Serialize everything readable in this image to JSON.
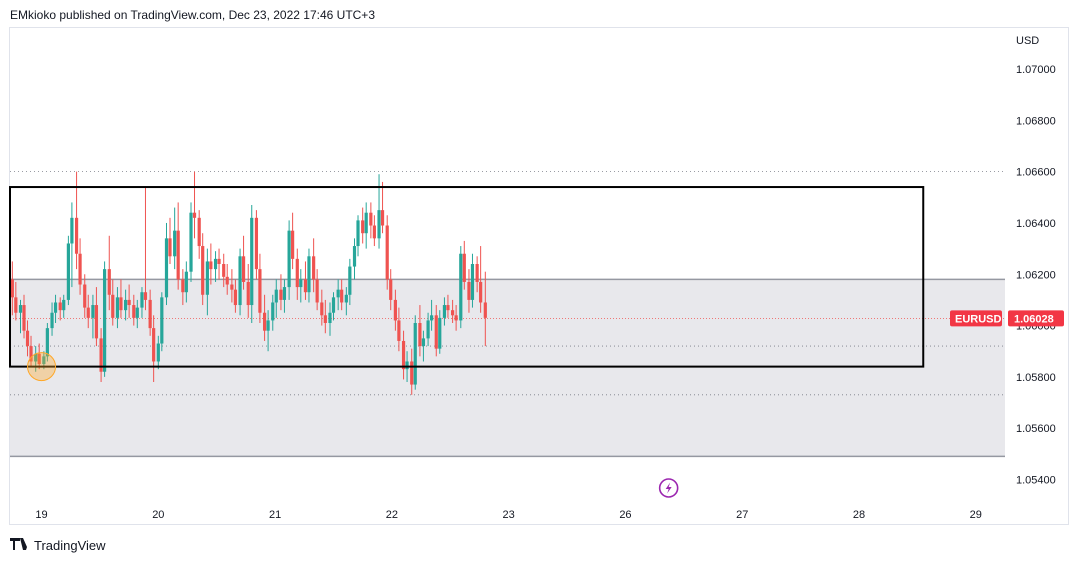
{
  "header": {
    "publisher": "EMkioko published on TradingView.com, Dec 23, 2022 17:46 UTC+3"
  },
  "footer": {
    "brand": "TradingView",
    "logo_icon": "tradingview-logo-icon"
  },
  "colors": {
    "up": "#26a69a",
    "down": "#ef5350",
    "range_fill": "#e8e8ec",
    "label_bg": "#f23645",
    "grid": "#e0e3eb",
    "dotted": "#787b86",
    "flash": "#9c27b0"
  },
  "chart_data": {
    "type": "candlestick",
    "symbol": "EURUSD",
    "currency": "USD",
    "last_price_label": "1.06028",
    "last_price": 1.06028,
    "y_ticks": [
      "1.07000",
      "1.06800",
      "1.06600",
      "1.06400",
      "1.06200",
      "1.06000",
      "1.05800",
      "1.05600",
      "1.05400"
    ],
    "y_tick_values": [
      1.07,
      1.068,
      1.066,
      1.064,
      1.062,
      1.06,
      1.058,
      1.056,
      1.054
    ],
    "ylim": [
      1.0532,
      1.0716
    ],
    "x_ticks": [
      "19",
      "20",
      "21",
      "22",
      "23",
      "26",
      "27",
      "28",
      "29"
    ],
    "x_tick_positions": [
      0,
      1,
      2,
      3,
      4,
      5,
      6,
      7,
      8
    ],
    "xlim": [
      -0.27,
      8.25
    ],
    "shaded_range": {
      "top": 1.0618,
      "bottom": 1.0549
    },
    "box_range": {
      "top": 1.0654,
      "bottom": 1.0584,
      "x_start": -0.27,
      "x_end": 7.55
    },
    "dotted_levels": [
      1.066,
      1.0592,
      1.0573
    ],
    "highlight_marker": {
      "x": 0.0,
      "y": 1.0584
    },
    "event_marker": {
      "x": 5.37
    },
    "candles": [
      [
        -0.25,
        1.0618,
        1.0625,
        1.0604,
        1.0611
      ],
      [
        -0.22,
        1.0611,
        1.0617,
        1.0602,
        1.0605
      ],
      [
        -0.18,
        1.0605,
        1.061,
        1.0597,
        1.0608
      ],
      [
        -0.15,
        1.0608,
        1.0612,
        1.0595,
        1.0598
      ],
      [
        -0.12,
        1.0598,
        1.0602,
        1.0588,
        1.0592
      ],
      [
        -0.09,
        1.0592,
        1.0596,
        1.0584,
        1.0586
      ],
      [
        -0.05,
        1.0586,
        1.0592,
        1.0582,
        1.0589
      ],
      [
        -0.02,
        1.0589,
        1.0593,
        1.0583,
        1.0585
      ],
      [
        0.02,
        1.0585,
        1.059,
        1.0583,
        1.0588
      ],
      [
        0.05,
        1.0588,
        1.0601,
        1.0586,
        1.0599
      ],
      [
        0.09,
        1.0599,
        1.0609,
        1.0596,
        1.0605
      ],
      [
        0.12,
        1.0605,
        1.0612,
        1.0601,
        1.0609
      ],
      [
        0.16,
        1.0609,
        1.0611,
        1.0602,
        1.0606
      ],
      [
        0.19,
        1.0606,
        1.0612,
        1.0603,
        1.061
      ],
      [
        0.23,
        1.061,
        1.0635,
        1.0608,
        1.0632
      ],
      [
        0.26,
        1.0632,
        1.0648,
        1.0615,
        1.0642
      ],
      [
        0.3,
        1.0642,
        1.066,
        1.0622,
        1.0628
      ],
      [
        0.33,
        1.0628,
        1.0634,
        1.0612,
        1.0616
      ],
      [
        0.37,
        1.0616,
        1.062,
        1.0603,
        1.0607
      ],
      [
        0.4,
        1.0607,
        1.0612,
        1.0599,
        1.0603
      ],
      [
        0.44,
        1.0603,
        1.0612,
        1.0595,
        1.0608
      ],
      [
        0.47,
        1.0608,
        1.0615,
        1.0592,
        1.0595
      ],
      [
        0.51,
        1.0595,
        1.0599,
        1.0578,
        1.0582
      ],
      [
        0.54,
        1.0582,
        1.0625,
        1.058,
        1.0622
      ],
      [
        0.58,
        1.0622,
        1.0635,
        1.0606,
        1.0612
      ],
      [
        0.61,
        1.0612,
        1.0618,
        1.06,
        1.0603
      ],
      [
        0.65,
        1.0603,
        1.0615,
        1.0599,
        1.0611
      ],
      [
        0.68,
        1.0611,
        1.0618,
        1.0603,
        1.0606
      ],
      [
        0.72,
        1.0606,
        1.0614,
        1.0602,
        1.061
      ],
      [
        0.75,
        1.061,
        1.0616,
        1.0603,
        1.0608
      ],
      [
        0.79,
        1.0608,
        1.0612,
        1.06,
        1.0603
      ],
      [
        0.82,
        1.0603,
        1.061,
        1.0599,
        1.0607
      ],
      [
        0.86,
        1.0607,
        1.0615,
        1.0603,
        1.0613
      ],
      [
        0.89,
        1.0613,
        1.0654,
        1.0606,
        1.061
      ],
      [
        0.93,
        1.061,
        1.0614,
        1.0596,
        1.0599
      ],
      [
        0.96,
        1.0599,
        1.0604,
        1.0578,
        1.0586
      ],
      [
        1.0,
        1.0586,
        1.0596,
        1.0583,
        1.0593
      ],
      [
        1.03,
        1.0593,
        1.0613,
        1.059,
        1.0611
      ],
      [
        1.07,
        1.0611,
        1.064,
        1.0608,
        1.0634
      ],
      [
        1.1,
        1.0634,
        1.0642,
        1.0624,
        1.0627
      ],
      [
        1.14,
        1.0627,
        1.0646,
        1.0622,
        1.0637
      ],
      [
        1.17,
        1.0637,
        1.0648,
        1.0614,
        1.0618
      ],
      [
        1.21,
        1.0618,
        1.0622,
        1.0608,
        1.0613
      ],
      [
        1.24,
        1.0613,
        1.0625,
        1.0609,
        1.0621
      ],
      [
        1.28,
        1.0621,
        1.0648,
        1.0617,
        1.0644
      ],
      [
        1.31,
        1.0644,
        1.066,
        1.0634,
        1.0642
      ],
      [
        1.35,
        1.0642,
        1.0645,
        1.0626,
        1.0631
      ],
      [
        1.38,
        1.0631,
        1.0636,
        1.0608,
        1.0612
      ],
      [
        1.42,
        1.0612,
        1.063,
        1.0604,
        1.0625
      ],
      [
        1.45,
        1.0625,
        1.0632,
        1.0616,
        1.0622
      ],
      [
        1.49,
        1.0622,
        1.0629,
        1.0617,
        1.0626
      ],
      [
        1.52,
        1.0626,
        1.063,
        1.0618,
        1.0624
      ],
      [
        1.56,
        1.0624,
        1.0628,
        1.0615,
        1.0619
      ],
      [
        1.59,
        1.0619,
        1.0624,
        1.0612,
        1.0616
      ],
      [
        1.63,
        1.0616,
        1.0622,
        1.0609,
        1.0614
      ],
      [
        1.66,
        1.0614,
        1.0618,
        1.0605,
        1.0608
      ],
      [
        1.7,
        1.0608,
        1.063,
        1.0604,
        1.0627
      ],
      [
        1.73,
        1.0627,
        1.0635,
        1.0614,
        1.0617
      ],
      [
        1.77,
        1.0617,
        1.0624,
        1.0603,
        1.0608
      ],
      [
        1.8,
        1.0608,
        1.0647,
        1.0601,
        1.0642
      ],
      [
        1.84,
        1.0642,
        1.0645,
        1.0618,
        1.0622
      ],
      [
        1.87,
        1.0622,
        1.0628,
        1.0601,
        1.0605
      ],
      [
        1.91,
        1.0605,
        1.0612,
        1.0594,
        1.0598
      ],
      [
        1.94,
        1.0598,
        1.0606,
        1.059,
        1.0602
      ],
      [
        1.98,
        1.0602,
        1.0612,
        1.0598,
        1.0609
      ],
      [
        2.01,
        1.0609,
        1.0618,
        1.0603,
        1.0614
      ],
      [
        2.05,
        1.0614,
        1.062,
        1.0606,
        1.061
      ],
      [
        2.08,
        1.061,
        1.0618,
        1.0605,
        1.0615
      ],
      [
        2.12,
        1.0615,
        1.0641,
        1.061,
        1.0637
      ],
      [
        2.15,
        1.0637,
        1.0644,
        1.0622,
        1.0626
      ],
      [
        2.19,
        1.0626,
        1.063,
        1.061,
        1.0615
      ],
      [
        2.22,
        1.0615,
        1.0622,
        1.0609,
        1.0618
      ],
      [
        2.26,
        1.0618,
        1.0625,
        1.061,
        1.0613
      ],
      [
        2.29,
        1.0613,
        1.063,
        1.0609,
        1.0627
      ],
      [
        2.33,
        1.0627,
        1.0634,
        1.0613,
        1.0618
      ],
      [
        2.36,
        1.0618,
        1.0622,
        1.0606,
        1.0609
      ],
      [
        2.4,
        1.0609,
        1.0614,
        1.06,
        1.0604
      ],
      [
        2.43,
        1.0604,
        1.061,
        1.0597,
        1.0601
      ],
      [
        2.47,
        1.0601,
        1.0609,
        1.0596,
        1.0605
      ],
      [
        2.5,
        1.0605,
        1.0613,
        1.0602,
        1.0611
      ],
      [
        2.54,
        1.0611,
        1.0618,
        1.0606,
        1.0614
      ],
      [
        2.57,
        1.0614,
        1.0618,
        1.0606,
        1.0609
      ],
      [
        2.61,
        1.0609,
        1.0615,
        1.0604,
        1.0612
      ],
      [
        2.64,
        1.0612,
        1.0626,
        1.0608,
        1.0623
      ],
      [
        2.68,
        1.0623,
        1.0634,
        1.0618,
        1.0631
      ],
      [
        2.71,
        1.0631,
        1.0643,
        1.0627,
        1.0641
      ],
      [
        2.75,
        1.0641,
        1.0646,
        1.0632,
        1.0636
      ],
      [
        2.78,
        1.0636,
        1.0648,
        1.063,
        1.0644
      ],
      [
        2.82,
        1.0644,
        1.0648,
        1.0634,
        1.0639
      ],
      [
        2.85,
        1.0639,
        1.0643,
        1.0631,
        1.0634
      ],
      [
        2.89,
        1.0634,
        1.0659,
        1.063,
        1.0645
      ],
      [
        2.92,
        1.0645,
        1.0656,
        1.0636,
        1.0639
      ],
      [
        2.96,
        1.0639,
        1.0643,
        1.0614,
        1.0618
      ],
      [
        2.99,
        1.0618,
        1.0622,
        1.0606,
        1.061
      ],
      [
        3.03,
        1.061,
        1.0614,
        1.0598,
        1.0602
      ],
      [
        3.06,
        1.0602,
        1.0607,
        1.059,
        1.0594
      ],
      [
        3.1,
        1.0594,
        1.0598,
        1.0579,
        1.0583
      ],
      [
        3.13,
        1.0583,
        1.059,
        1.0578,
        1.0586
      ],
      [
        3.17,
        1.0586,
        1.0591,
        1.0573,
        1.0577
      ],
      [
        3.2,
        1.0577,
        1.0604,
        1.0575,
        1.0601
      ],
      [
        3.24,
        1.0601,
        1.0608,
        1.0588,
        1.0592
      ],
      [
        3.27,
        1.0592,
        1.0598,
        1.0586,
        1.0595
      ],
      [
        3.31,
        1.0595,
        1.0605,
        1.0592,
        1.0602
      ],
      [
        3.34,
        1.0602,
        1.061,
        1.0598,
        1.0604
      ],
      [
        3.38,
        1.0604,
        1.0608,
        1.0588,
        1.0591
      ],
      [
        3.41,
        1.0591,
        1.0606,
        1.0589,
        1.0603
      ],
      [
        3.45,
        1.0603,
        1.0611,
        1.06,
        1.0608
      ],
      [
        3.48,
        1.0608,
        1.0612,
        1.0603,
        1.0606
      ],
      [
        3.52,
        1.0606,
        1.061,
        1.0601,
        1.0604
      ],
      [
        3.55,
        1.0604,
        1.0608,
        1.0598,
        1.0602
      ],
      [
        3.59,
        1.0602,
        1.0631,
        1.0599,
        1.0628
      ],
      [
        3.62,
        1.0628,
        1.0633,
        1.0614,
        1.0617
      ],
      [
        3.66,
        1.0617,
        1.0622,
        1.0605,
        1.061
      ],
      [
        3.69,
        1.061,
        1.0628,
        1.0607,
        1.0624
      ],
      [
        3.73,
        1.0624,
        1.0627,
        1.0613,
        1.0617
      ],
      [
        3.76,
        1.0617,
        1.0631,
        1.0605,
        1.0609
      ],
      [
        3.8,
        1.0609,
        1.0621,
        1.0592,
        1.0603
      ]
    ]
  }
}
